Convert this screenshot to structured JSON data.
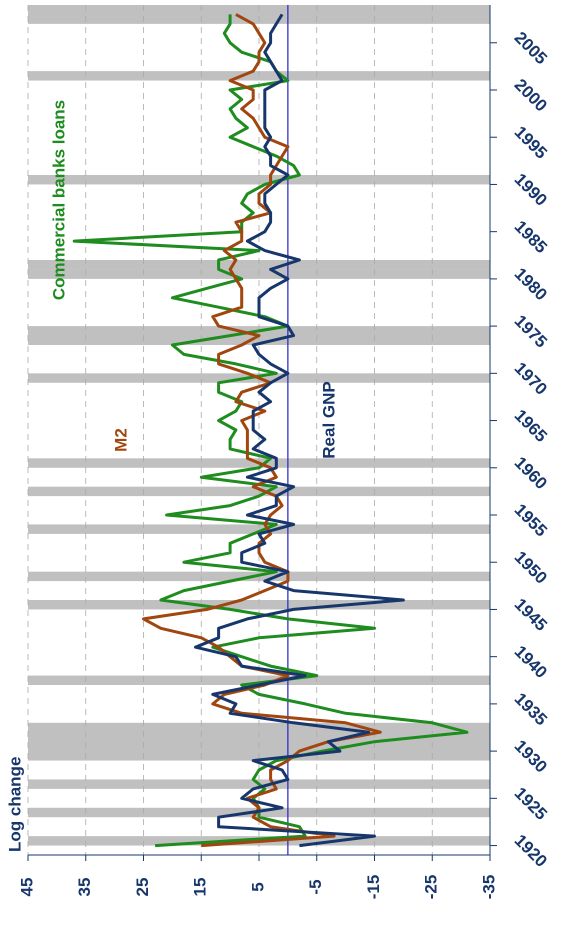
{
  "chart_data": {
    "type": "line",
    "ylabel": "Log change",
    "x": [
      1920,
      1921,
      1922,
      1923,
      1924,
      1925,
      1926,
      1927,
      1928,
      1929,
      1930,
      1931,
      1932,
      1933,
      1934,
      1935,
      1936,
      1937,
      1938,
      1939,
      1940,
      1941,
      1942,
      1943,
      1944,
      1945,
      1946,
      1947,
      1948,
      1949,
      1950,
      1951,
      1952,
      1953,
      1954,
      1955,
      1956,
      1957,
      1958,
      1959,
      1960,
      1961,
      1962,
      1963,
      1964,
      1965,
      1966,
      1967,
      1968,
      1969,
      1970,
      1971,
      1972,
      1973,
      1974,
      1975,
      1976,
      1977,
      1978,
      1979,
      1980,
      1981,
      1982,
      1983,
      1984,
      1985,
      1986,
      1987,
      1988,
      1989,
      1990,
      1991,
      1992,
      1993,
      1994,
      1995,
      1996,
      1997,
      1998,
      1999,
      2000,
      2001,
      2002,
      2003,
      2004,
      2005,
      2006,
      2007,
      2008
    ],
    "series": [
      {
        "name": "Commercial banks loans",
        "color": "#1e8c1e",
        "values": [
          23,
          -3,
          -2,
          5,
          5,
          6,
          4,
          6,
          5,
          2,
          -6,
          -15,
          -31,
          -25,
          -10,
          -3,
          5,
          8,
          -5,
          3,
          8,
          13,
          5,
          -15,
          0,
          10,
          22,
          18,
          10,
          2,
          18,
          10,
          10,
          6,
          2,
          21,
          10,
          5,
          2,
          15,
          5,
          3,
          10,
          10,
          9,
          12,
          9,
          8,
          12,
          12,
          2,
          9,
          18,
          20,
          10,
          0,
          4,
          12,
          20,
          14,
          8,
          12,
          12,
          5,
          37,
          8,
          8,
          6,
          8,
          7,
          4,
          -2,
          -1,
          2,
          6,
          10,
          7,
          9,
          10,
          8,
          10,
          0,
          2,
          3,
          8,
          10,
          11,
          10,
          10
        ]
      },
      {
        "name": "M2",
        "color": "#a0460e",
        "values": [
          15,
          -8,
          3,
          6,
          5,
          7,
          2,
          3,
          3,
          0,
          -2,
          -7,
          -16,
          -10,
          8,
          13,
          11,
          4,
          0,
          8,
          10,
          12,
          15,
          22,
          25,
          14,
          8,
          4,
          0,
          0,
          4,
          5,
          5,
          3,
          4,
          3,
          1,
          2,
          6,
          2,
          3,
          7,
          7,
          7,
          7,
          8,
          4,
          9,
          8,
          3,
          7,
          12,
          12,
          8,
          5,
          12,
          13,
          8,
          8,
          8,
          9,
          10,
          9,
          11,
          8,
          8,
          9,
          3,
          5,
          5,
          3,
          3,
          2,
          1,
          0,
          4,
          5,
          6,
          8,
          6,
          6,
          10,
          6,
          5,
          5,
          4,
          5,
          6,
          9
        ]
      },
      {
        "name": "Real GNP",
        "color": "#17366b",
        "values": [
          -2,
          -15,
          12,
          12,
          1,
          8,
          6,
          0,
          1,
          6,
          -9,
          -7,
          -14,
          -1,
          10,
          9,
          13,
          5,
          -3,
          8,
          9,
          16,
          12,
          12,
          7,
          -1,
          -20,
          -1,
          4,
          0,
          8,
          8,
          4,
          5,
          -1,
          7,
          2,
          2,
          -1,
          7,
          2,
          2,
          6,
          4,
          6,
          6,
          6,
          3,
          5,
          3,
          0,
          3,
          5,
          6,
          -1,
          0,
          5,
          5,
          5,
          3,
          0,
          3,
          -2,
          4,
          7,
          4,
          3,
          3,
          4,
          4,
          2,
          0,
          3,
          3,
          4,
          3,
          4,
          4,
          4,
          4,
          4,
          1,
          2,
          3,
          4,
          3,
          3,
          2,
          1
        ]
      }
    ],
    "recessions": [
      [
        1920,
        1921
      ],
      [
        1923,
        1924
      ],
      [
        1926,
        1927
      ],
      [
        1929,
        1933
      ],
      [
        1937,
        1938
      ],
      [
        1945,
        1946
      ],
      [
        1948,
        1949
      ],
      [
        1953,
        1954
      ],
      [
        1957,
        1958
      ],
      [
        1960,
        1961
      ],
      [
        1969,
        1970
      ],
      [
        1973,
        1975
      ],
      [
        1980,
        1981
      ],
      [
        1981,
        1982
      ],
      [
        1990,
        1991
      ],
      [
        2001,
        2002
      ],
      [
        2007,
        2009
      ]
    ],
    "recession_color": "#c0c0c0",
    "xlim": [
      1919,
      2009
    ],
    "xticks": [
      1920,
      1925,
      1930,
      1935,
      1940,
      1945,
      1950,
      1955,
      1960,
      1965,
      1970,
      1975,
      1980,
      1985,
      1990,
      1995,
      2000,
      2005
    ],
    "ylim": [
      -35,
      45
    ],
    "yticks": [
      45,
      35,
      25,
      15,
      5,
      -5,
      -15,
      -25,
      -35
    ],
    "zero_line": true,
    "grid": true
  }
}
